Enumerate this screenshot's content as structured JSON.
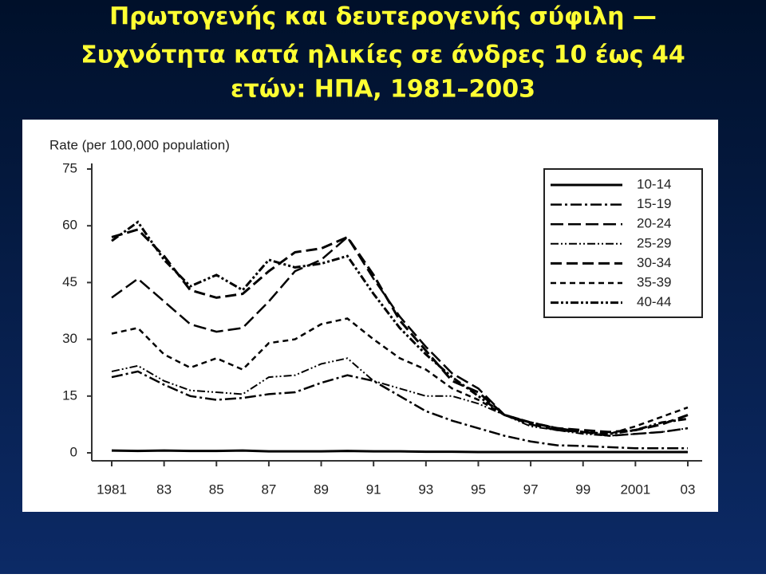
{
  "chart_data": {
    "type": "line",
    "title": [
      "Πρωτογενής και δευτερογενής σύφιλη —",
      "Συχνότητα κατά ηλικίες σε άνδρες 10 έως 44",
      "ετών: ΗΠΑ, 1981–2003"
    ],
    "y_label": "Rate (per 100,000 population)",
    "x": [
      1981,
      1982,
      1983,
      1984,
      1985,
      1986,
      1987,
      1988,
      1989,
      1990,
      1991,
      1992,
      1993,
      1994,
      1995,
      1996,
      1997,
      1998,
      1999,
      2000,
      2001,
      2002,
      2003
    ],
    "xlim": [
      1981,
      2003
    ],
    "xticks": [
      {
        "value": 1981,
        "label": "1981"
      },
      {
        "value": 1983,
        "label": "83"
      },
      {
        "value": 1985,
        "label": "85"
      },
      {
        "value": 1987,
        "label": "87"
      },
      {
        "value": 1989,
        "label": "89"
      },
      {
        "value": 1991,
        "label": "91"
      },
      {
        "value": 1993,
        "label": "93"
      },
      {
        "value": 1995,
        "label": "95"
      },
      {
        "value": 1997,
        "label": "97"
      },
      {
        "value": 1999,
        "label": "99"
      },
      {
        "value": 2001,
        "label": "2001"
      },
      {
        "value": 2003,
        "label": "03"
      }
    ],
    "ylim": [
      0,
      75
    ],
    "yticks": [
      0,
      15,
      30,
      45,
      60,
      75
    ],
    "legend": "upper right",
    "series": [
      {
        "name": "10-14",
        "color": "#000000",
        "dash": "none",
        "width": 3,
        "values": [
          0.6,
          0.5,
          0.6,
          0.5,
          0.5,
          0.6,
          0.4,
          0.4,
          0.4,
          0.5,
          0.4,
          0.4,
          0.3,
          0.3,
          0.2,
          0.2,
          0.2,
          0.2,
          0.2,
          0.2,
          0.2,
          0.2,
          0.2
        ]
      },
      {
        "name": "15-19",
        "color": "#000000",
        "dash": "14 4 3 4",
        "width": 2.5,
        "values": [
          20,
          21.5,
          18,
          15,
          14,
          14.5,
          15.5,
          16,
          18.5,
          20.5,
          19,
          15,
          11,
          8.5,
          6.5,
          4.5,
          3,
          2,
          1.8,
          1.5,
          1.2,
          1.2,
          1.2
        ]
      },
      {
        "name": "20-24",
        "color": "#000000",
        "dash": "16 6",
        "width": 2.5,
        "values": [
          41,
          46,
          40,
          34,
          32,
          33,
          40,
          48,
          51,
          57,
          46,
          36,
          28,
          21,
          17,
          10,
          7.5,
          6,
          5.5,
          4.5,
          5,
          5.5,
          6.5
        ]
      },
      {
        "name": "25-29",
        "color": "#000000",
        "dash": "10 3 2 3 2 3",
        "width": 2,
        "values": [
          21.5,
          23,
          19,
          16.5,
          16,
          15.5,
          20,
          20.5,
          23.5,
          25,
          19,
          17,
          15,
          15,
          13,
          10,
          7,
          6,
          5,
          4.5,
          5,
          5.5,
          6.5
        ]
      },
      {
        "name": "30-34",
        "color": "#000000",
        "dash": "14 6",
        "width": 3,
        "values": [
          57,
          59,
          52,
          43,
          41,
          42,
          48,
          53,
          54,
          57,
          47,
          35,
          27,
          19,
          16,
          10,
          8,
          6.5,
          6,
          5.5,
          6,
          7.5,
          10
        ]
      },
      {
        "name": "35-39",
        "color": "#000000",
        "dash": "7 5",
        "width": 2.5,
        "values": [
          31.5,
          33,
          26,
          22.5,
          25,
          22,
          29,
          30,
          34,
          35.5,
          30,
          25,
          22,
          17,
          14,
          10,
          8,
          6.5,
          5.5,
          5,
          7,
          9.5,
          12
        ]
      },
      {
        "name": "40-44",
        "color": "#000000",
        "dash": "10 3 3 3 3 3",
        "width": 3,
        "values": [
          56,
          61,
          51,
          44,
          47,
          43,
          51,
          49,
          50,
          52,
          42,
          33,
          26,
          20,
          15,
          10,
          8,
          6.5,
          5.5,
          5,
          6,
          8,
          9
        ]
      }
    ]
  }
}
